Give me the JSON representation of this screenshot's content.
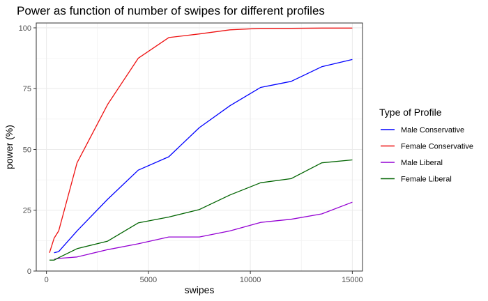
{
  "chart_data": {
    "type": "line",
    "title": "Power as function of number of swipes for different profiles",
    "xlabel": "swipes",
    "ylabel": "power (%)",
    "xlim": [
      -500,
      15500
    ],
    "ylim": [
      0,
      102
    ],
    "xticks": [
      0,
      5000,
      10000,
      15000
    ],
    "yticks": [
      0,
      25,
      50,
      75,
      100
    ],
    "grid": true,
    "legend": {
      "title": "Type of Profile",
      "position": "right"
    },
    "series": [
      {
        "name": "Male Conservative",
        "color": "#0000ff",
        "x": [
          375,
          600,
          1500,
          3000,
          4500,
          6000,
          7500,
          9000,
          10500,
          12000,
          13500,
          15000
        ],
        "y": [
          7.5,
          8.0,
          16.5,
          29.5,
          41.5,
          47.0,
          59.0,
          68.0,
          75.5,
          78.0,
          84.0,
          87.0
        ]
      },
      {
        "name": "Female Conservative",
        "color": "#ee1111",
        "x": [
          150,
          375,
          600,
          1500,
          3000,
          4500,
          6000,
          7500,
          9000,
          10500,
          12000,
          13500,
          15000
        ],
        "y": [
          7.5,
          13.5,
          16.5,
          44.5,
          68.5,
          87.5,
          96.0,
          97.5,
          99.2,
          99.8,
          99.8,
          99.9,
          99.9
        ]
      },
      {
        "name": "Male Liberal",
        "color": "#9400d3",
        "x": [
          375,
          600,
          1500,
          3000,
          4500,
          6000,
          7500,
          9000,
          10500,
          12000,
          13500,
          15000
        ],
        "y": [
          4.8,
          5.2,
          5.8,
          8.8,
          11.2,
          14.0,
          14.0,
          16.5,
          20.0,
          21.3,
          23.5,
          28.3
        ]
      },
      {
        "name": "Female Liberal",
        "color": "#006400",
        "x": [
          150,
          375,
          600,
          1500,
          3000,
          4500,
          6000,
          7500,
          9000,
          10500,
          12000,
          13500,
          15000
        ],
        "y": [
          4.5,
          4.5,
          5.5,
          9.2,
          12.3,
          19.8,
          22.2,
          25.3,
          31.3,
          36.3,
          38.0,
          44.5,
          45.7
        ]
      }
    ]
  }
}
